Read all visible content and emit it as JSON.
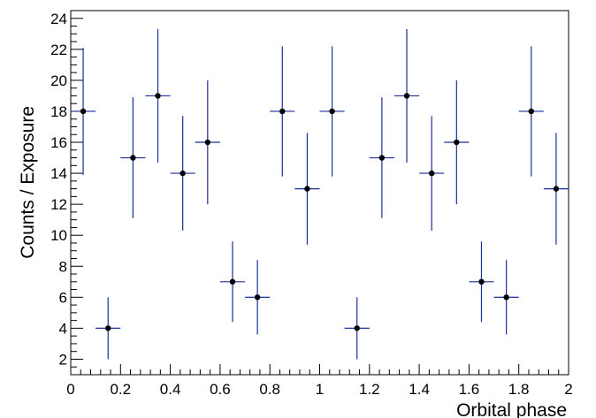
{
  "chart_data": {
    "type": "scatter",
    "title": "",
    "xlabel": "Orbital phase",
    "ylabel": "Counts / Exposure",
    "xlim": [
      0,
      2
    ],
    "ylim": [
      1,
      24.5
    ],
    "grid": false,
    "x_ticks": [
      "0",
      "0.2",
      "0.4",
      "0.6",
      "0.8",
      "1",
      "1.2",
      "1.4",
      "1.6",
      "1.8",
      "2"
    ],
    "y_ticks": [
      "2",
      "4",
      "6",
      "8",
      "10",
      "12",
      "14",
      "16",
      "18",
      "20",
      "22",
      "24"
    ],
    "series": [
      {
        "x_halfwidth": 0.05,
        "points": [
          {
            "x": 0.05,
            "y": 18,
            "err_low": 4.1,
            "err_high": 4.1
          },
          {
            "x": 0.15,
            "y": 4,
            "err_low": 2.0,
            "err_high": 2.0
          },
          {
            "x": 0.25,
            "y": 15,
            "err_low": 3.9,
            "err_high": 3.9
          },
          {
            "x": 0.35,
            "y": 19,
            "err_low": 4.3,
            "err_high": 4.3
          },
          {
            "x": 0.45,
            "y": 14,
            "err_low": 3.7,
            "err_high": 3.7
          },
          {
            "x": 0.55,
            "y": 16,
            "err_low": 4.0,
            "err_high": 4.0
          },
          {
            "x": 0.65,
            "y": 7,
            "err_low": 2.6,
            "err_high": 2.6
          },
          {
            "x": 0.75,
            "y": 6,
            "err_low": 2.4,
            "err_high": 2.4
          },
          {
            "x": 0.85,
            "y": 18,
            "err_low": 4.2,
            "err_high": 4.2
          },
          {
            "x": 0.95,
            "y": 13,
            "err_low": 3.6,
            "err_high": 3.6
          },
          {
            "x": 1.05,
            "y": 18,
            "err_low": 4.2,
            "err_high": 4.2
          },
          {
            "x": 1.15,
            "y": 4,
            "err_low": 2.0,
            "err_high": 2.0
          },
          {
            "x": 1.25,
            "y": 15,
            "err_low": 3.9,
            "err_high": 3.9
          },
          {
            "x": 1.35,
            "y": 19,
            "err_low": 4.3,
            "err_high": 4.3
          },
          {
            "x": 1.45,
            "y": 14,
            "err_low": 3.7,
            "err_high": 3.7
          },
          {
            "x": 1.55,
            "y": 16,
            "err_low": 4.0,
            "err_high": 4.0
          },
          {
            "x": 1.65,
            "y": 7,
            "err_low": 2.6,
            "err_high": 2.6
          },
          {
            "x": 1.75,
            "y": 6,
            "err_low": 2.4,
            "err_high": 2.4
          },
          {
            "x": 1.85,
            "y": 18,
            "err_low": 4.2,
            "err_high": 4.2
          },
          {
            "x": 1.95,
            "y": 13,
            "err_low": 3.6,
            "err_high": 3.6
          }
        ]
      }
    ],
    "colors": {
      "errorbar": "#1a2e9c",
      "marker": "#000000",
      "axis": "#000000"
    }
  }
}
